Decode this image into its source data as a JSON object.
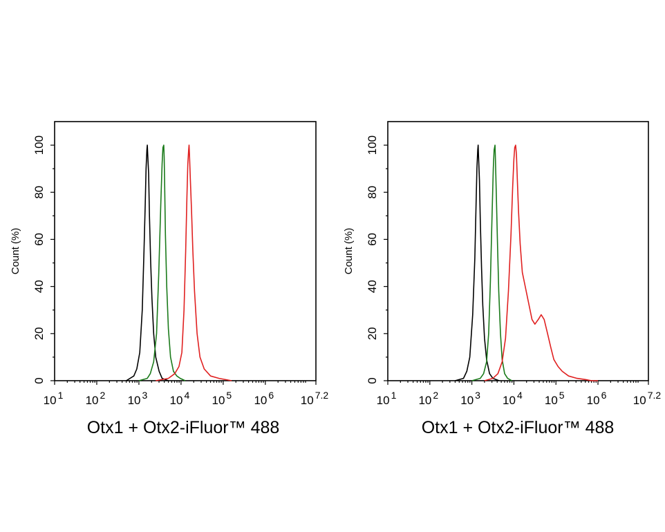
{
  "chart_data": [
    {
      "type": "line",
      "xlabel": "Otx1 + Otx2-iFluor™ 488",
      "ylabel": "Count  (%)",
      "x_scale": "log",
      "xlim": [
        1,
        7.2
      ],
      "ylim": [
        0,
        110
      ],
      "y_ticks": [
        0,
        20,
        40,
        60,
        80,
        100
      ],
      "x_ticks": [
        {
          "base": "10",
          "exp": "1",
          "value": 1
        },
        {
          "base": "10",
          "exp": "2",
          "value": 2
        },
        {
          "base": "10",
          "exp": "3",
          "value": 3
        },
        {
          "base": "10",
          "exp": "4",
          "value": 4
        },
        {
          "base": "10",
          "exp": "5",
          "value": 5
        },
        {
          "base": "10",
          "exp": "6",
          "value": 6
        },
        {
          "base": "10",
          "exp": "7.2",
          "value": 7.2
        }
      ],
      "grid": false,
      "series": [
        {
          "color": "#000000",
          "x": [
            2.7,
            2.88,
            2.95,
            3.02,
            3.08,
            3.12,
            3.15,
            3.17,
            3.19,
            3.2,
            3.21,
            3.23,
            3.25,
            3.28,
            3.31,
            3.35,
            3.4,
            3.48,
            3.55,
            3.7
          ],
          "y": [
            0,
            2,
            5,
            12,
            30,
            55,
            75,
            90,
            98,
            100,
            96,
            88,
            70,
            50,
            35,
            20,
            10,
            4,
            1,
            0
          ]
        },
        {
          "color": "#1a7a1a",
          "x": [
            3.0,
            3.2,
            3.27,
            3.35,
            3.42,
            3.47,
            3.52,
            3.55,
            3.57,
            3.59,
            3.6,
            3.61,
            3.63,
            3.66,
            3.7,
            3.75,
            3.82,
            3.9,
            3.98,
            4.1
          ],
          "y": [
            0,
            1,
            3,
            8,
            20,
            45,
            75,
            92,
            99,
            100,
            95,
            85,
            62,
            40,
            22,
            10,
            4,
            2,
            1,
            0
          ]
        },
        {
          "color": "#e02020",
          "x": [
            3.4,
            3.7,
            3.85,
            3.95,
            4.02,
            4.07,
            4.11,
            4.14,
            4.16,
            4.18,
            4.19,
            4.2,
            4.22,
            4.25,
            4.28,
            4.32,
            4.38,
            4.45,
            4.55,
            4.7,
            4.9,
            5.2
          ],
          "y": [
            0,
            1,
            3,
            6,
            12,
            30,
            55,
            78,
            92,
            98,
            100,
            96,
            86,
            72,
            55,
            38,
            20,
            10,
            5,
            2,
            1,
            0
          ]
        }
      ]
    },
    {
      "type": "line",
      "xlabel": "Otx1 + Otx2-iFluor™ 488",
      "ylabel": "Count  (%)",
      "x_scale": "log",
      "xlim": [
        1,
        7.2
      ],
      "ylim": [
        0,
        110
      ],
      "y_ticks": [
        0,
        20,
        40,
        60,
        80,
        100
      ],
      "x_ticks": [
        {
          "base": "10",
          "exp": "1",
          "value": 1
        },
        {
          "base": "10",
          "exp": "2",
          "value": 2
        },
        {
          "base": "10",
          "exp": "3",
          "value": 3
        },
        {
          "base": "10",
          "exp": "4",
          "value": 4
        },
        {
          "base": "10",
          "exp": "5",
          "value": 5
        },
        {
          "base": "10",
          "exp": "6",
          "value": 6
        },
        {
          "base": "10",
          "exp": "7.2",
          "value": 7.2
        }
      ],
      "grid": false,
      "series": [
        {
          "color": "#000000",
          "x": [
            2.6,
            2.8,
            2.88,
            2.95,
            3.02,
            3.07,
            3.1,
            3.12,
            3.14,
            3.15,
            3.16,
            3.18,
            3.2,
            3.23,
            3.26,
            3.3,
            3.35,
            3.42,
            3.5,
            3.65
          ],
          "y": [
            0,
            1,
            4,
            10,
            28,
            52,
            75,
            90,
            98,
            100,
            95,
            85,
            68,
            48,
            32,
            18,
            9,
            3,
            1,
            0
          ]
        },
        {
          "color": "#1a7a1a",
          "x": [
            3.0,
            3.2,
            3.28,
            3.35,
            3.4,
            3.44,
            3.48,
            3.51,
            3.53,
            3.55,
            3.56,
            3.58,
            3.61,
            3.64,
            3.68,
            3.72,
            3.78,
            3.85,
            3.95
          ],
          "y": [
            0,
            1,
            3,
            8,
            20,
            42,
            70,
            90,
            98,
            100,
            94,
            80,
            58,
            38,
            20,
            9,
            3,
            1,
            0
          ]
        },
        {
          "color": "#e02020",
          "x": [
            3.3,
            3.5,
            3.62,
            3.72,
            3.8,
            3.87,
            3.93,
            3.97,
            4.0,
            4.02,
            4.04,
            4.06,
            4.08,
            4.11,
            4.15,
            4.2,
            4.27,
            4.35,
            4.43,
            4.5,
            4.58,
            4.65,
            4.72,
            4.8,
            4.88,
            4.95,
            5.05,
            5.15,
            5.3,
            5.5,
            5.7,
            5.85,
            6.0
          ],
          "y": [
            0,
            1,
            3,
            8,
            18,
            38,
            62,
            82,
            94,
            99,
            100,
            96,
            86,
            72,
            58,
            46,
            40,
            33,
            26,
            24,
            26,
            28,
            26,
            20,
            14,
            9,
            6,
            4,
            2,
            1,
            0.5,
            0,
            0
          ]
        }
      ]
    }
  ]
}
